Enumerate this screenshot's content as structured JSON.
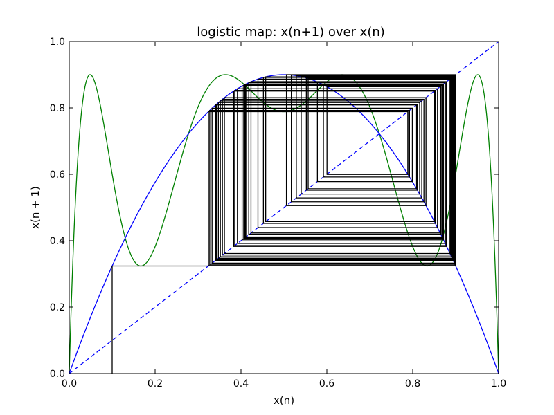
{
  "chart_data": {
    "type": "line",
    "title": "logistic map: x(n+1) over x(n)",
    "xlabel": "x(n)",
    "ylabel": "x(n + 1)",
    "xlim": [
      0,
      1
    ],
    "ylim": [
      0,
      1
    ],
    "grid": false,
    "legend": "none",
    "r": 3.6,
    "x_ticks": [
      0.0,
      0.2,
      0.4,
      0.6,
      0.8,
      1.0
    ],
    "y_ticks": [
      0.0,
      0.2,
      0.4,
      0.6,
      0.8,
      1.0
    ],
    "x_tick_labels": [
      "0.0",
      "0.2",
      "0.4",
      "0.6",
      "0.8",
      "1.0"
    ],
    "y_tick_labels": [
      "0.0",
      "0.2",
      "0.4",
      "0.6",
      "0.8",
      "1.0"
    ],
    "series": [
      {
        "function": "r*x*(1-x)",
        "color": "#0000ff",
        "style": "solid"
      },
      {
        "function": "third iterate of r*x*(1-x)",
        "color": "#008000",
        "style": "solid"
      },
      {
        "function": "y = x",
        "color": "#0000ff",
        "style": "dashed"
      }
    ],
    "cobweb": {
      "x0": 0.1,
      "color": "#000000",
      "stop_at_x": 0.6,
      "vertices": [
        [
          0.1,
          0.0
        ],
        [
          0.1,
          0.324
        ],
        [
          0.324,
          0.324
        ],
        [
          0.324,
          0.7885
        ],
        [
          0.7885,
          0.7885
        ],
        [
          0.7885,
          0.6003
        ],
        [
          0.6003,
          0.6003
        ],
        [
          0.6003,
          0.8639
        ],
        [
          0.8639,
          0.8639
        ],
        [
          0.8639,
          0.4233
        ],
        [
          0.4233,
          0.4233
        ],
        [
          0.4233,
          0.879
        ],
        [
          0.879,
          0.879
        ],
        [
          0.879,
          0.3829
        ],
        [
          0.3829,
          0.3829
        ],
        [
          0.3829,
          0.8506
        ],
        [
          0.8506,
          0.8506
        ],
        [
          0.8506,
          0.4575
        ],
        [
          0.4575,
          0.4575
        ],
        [
          0.4575,
          0.8935
        ],
        [
          0.8935,
          0.8935
        ],
        [
          0.8935,
          0.3426
        ],
        [
          0.3426,
          0.3426
        ],
        [
          0.3426,
          0.8108
        ],
        [
          0.8108,
          0.8108
        ],
        [
          0.8108,
          0.5522
        ],
        [
          0.5522,
          0.5522
        ],
        [
          0.5522,
          0.8902
        ],
        [
          0.8902,
          0.8902
        ],
        [
          0.8902,
          0.3519
        ],
        [
          0.3519,
          0.3519
        ],
        [
          0.3519,
          0.8211
        ],
        [
          0.8211,
          0.8211
        ],
        [
          0.8211,
          0.5289
        ],
        [
          0.5289,
          0.5289
        ],
        [
          0.5289,
          0.897
        ],
        [
          0.897,
          0.897
        ],
        [
          0.897,
          0.3326
        ],
        [
          0.3326,
          0.3326
        ],
        [
          0.3326,
          0.7991
        ],
        [
          0.7991,
          0.7991
        ],
        [
          0.7991,
          0.578
        ],
        [
          0.578,
          0.578
        ],
        [
          0.578,
          0.8781
        ],
        [
          0.8781,
          0.8781
        ],
        [
          0.8781,
          0.3854
        ],
        [
          0.3854,
          0.3854
        ],
        [
          0.3854,
          0.8527
        ],
        [
          0.8527,
          0.8527
        ],
        [
          0.8527,
          0.4522
        ],
        [
          0.4522,
          0.4522
        ],
        [
          0.4522,
          0.8918
        ],
        [
          0.8918,
          0.8918
        ],
        [
          0.8918,
          0.3473
        ],
        [
          0.3473,
          0.3473
        ],
        [
          0.3473,
          0.8161
        ],
        [
          0.8161,
          0.8161
        ],
        [
          0.8161,
          0.5403
        ],
        [
          0.5403,
          0.5403
        ],
        [
          0.5403,
          0.8941
        ],
        [
          0.8941,
          0.8941
        ],
        [
          0.8941,
          0.3409
        ],
        [
          0.3409,
          0.3409
        ],
        [
          0.3409,
          0.8089
        ],
        [
          0.8089,
          0.8089
        ],
        [
          0.8089,
          0.5565
        ],
        [
          0.5565,
          0.5565
        ],
        [
          0.5565,
          0.8885
        ],
        [
          0.8885,
          0.8885
        ],
        [
          0.8885,
          0.3567
        ],
        [
          0.3567,
          0.3567
        ],
        [
          0.3567,
          0.8261
        ],
        [
          0.8261,
          0.8261
        ],
        [
          0.8261,
          0.5172
        ],
        [
          0.5172,
          0.5172
        ],
        [
          0.5172,
          0.8989
        ],
        [
          0.8989,
          0.8989
        ],
        [
          0.8989,
          0.3272
        ],
        [
          0.3272,
          0.3272
        ],
        [
          0.3272,
          0.7925
        ],
        [
          0.7925,
          0.7925
        ],
        [
          0.7925,
          0.592
        ],
        [
          0.592,
          0.592
        ],
        [
          0.592,
          0.8696
        ],
        [
          0.8696,
          0.8696
        ],
        [
          0.8696,
          0.4082
        ],
        [
          0.4082,
          0.4082
        ],
        [
          0.4082,
          0.8697
        ],
        [
          0.8697,
          0.8697
        ],
        [
          0.8697,
          0.408
        ],
        [
          0.408,
          0.408
        ],
        [
          0.408,
          0.8695
        ],
        [
          0.8695,
          0.8695
        ],
        [
          0.8695,
          0.4085
        ],
        [
          0.4085,
          0.4085
        ],
        [
          0.4085,
          0.8699
        ],
        [
          0.8699,
          0.8699
        ],
        [
          0.8699,
          0.4074
        ],
        [
          0.4074,
          0.4074
        ],
        [
          0.4074,
          0.8692
        ],
        [
          0.8692,
          0.8692
        ],
        [
          0.8692,
          0.4093
        ],
        [
          0.4093,
          0.4093
        ],
        [
          0.4093,
          0.8703
        ],
        [
          0.8703,
          0.8703
        ],
        [
          0.8703,
          0.4063
        ],
        [
          0.4063,
          0.4063
        ],
        [
          0.4063,
          0.8684
        ],
        [
          0.8684,
          0.8684
        ],
        [
          0.8684,
          0.4114
        ],
        [
          0.4114,
          0.4114
        ],
        [
          0.4114,
          0.8717
        ],
        [
          0.8717,
          0.8717
        ],
        [
          0.8717,
          0.4026
        ],
        [
          0.4026,
          0.4026
        ],
        [
          0.4026,
          0.8659
        ],
        [
          0.8659,
          0.8659
        ],
        [
          0.8659,
          0.418
        ],
        [
          0.418,
          0.418
        ],
        [
          0.418,
          0.8758
        ],
        [
          0.8758,
          0.8758
        ],
        [
          0.8758,
          0.3916
        ],
        [
          0.3916,
          0.3916
        ],
        [
          0.3916,
          0.8577
        ],
        [
          0.8577,
          0.8577
        ],
        [
          0.8577,
          0.4395
        ],
        [
          0.4395,
          0.4395
        ],
        [
          0.4395,
          0.8868
        ],
        [
          0.8868,
          0.8868
        ],
        [
          0.8868,
          0.3614
        ],
        [
          0.3614,
          0.3614
        ],
        [
          0.3614,
          0.8309
        ],
        [
          0.8309,
          0.8309
        ],
        [
          0.8309,
          0.5058
        ],
        [
          0.5058,
          0.5058
        ],
        [
          0.5058,
          0.8999
        ],
        [
          0.8999,
          0.8999
        ],
        [
          0.8999,
          0.3243
        ],
        [
          0.3243,
          0.3243
        ],
        [
          0.3243,
          0.7889
        ],
        [
          0.7889,
          0.7889
        ],
        [
          0.7889,
          0.5996
        ],
        [
          0.5996,
          0.5996
        ]
      ]
    }
  }
}
